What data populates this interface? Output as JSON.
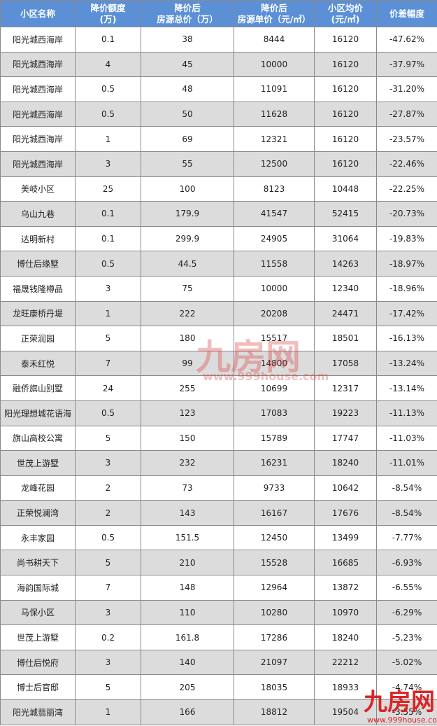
{
  "headers": [
    "小区名称",
    "降价额度\n(万)",
    "降价后\n房源总价（万）",
    "降价后\n房源单价（元/㎡）",
    "小区均价\n(元/㎡)",
    "价差幅度"
  ],
  "rows": [
    [
      "阳光城西海岸",
      "0.1",
      "38",
      "8444",
      "16120",
      "-47.62%"
    ],
    [
      "阳光城西海岸",
      "4",
      "45",
      "10000",
      "16120",
      "-37.97%"
    ],
    [
      "阳光城西海岸",
      "0.5",
      "48",
      "11091",
      "16120",
      "-31.20%"
    ],
    [
      "阳光城西海岸",
      "0.5",
      "50",
      "11628",
      "16120",
      "-27.87%"
    ],
    [
      "阳光城西海岸",
      "1",
      "69",
      "12321",
      "16120",
      "-23.57%"
    ],
    [
      "阳光城西海岸",
      "3",
      "55",
      "12500",
      "16120",
      "-22.46%"
    ],
    [
      "美岐小区",
      "25",
      "100",
      "8123",
      "10448",
      "-22.25%"
    ],
    [
      "乌山九巷",
      "0.1",
      "179.9",
      "41547",
      "52415",
      "-20.73%"
    ],
    [
      "达明新村",
      "0.1",
      "299.9",
      "24905",
      "31064",
      "-19.83%"
    ],
    [
      "博仕后缘墅",
      "0.5",
      "44.5",
      "11558",
      "14263",
      "-18.97%"
    ],
    [
      "福晟钱隆樽品",
      "3",
      "75",
      "10000",
      "12340",
      "-18.96%"
    ],
    [
      "龙旺康桥丹堤",
      "1",
      "222",
      "20208",
      "24471",
      "-17.42%"
    ],
    [
      "正荣润园",
      "5",
      "180",
      "15517",
      "18501",
      "-16.13%"
    ],
    [
      "泰禾红悦",
      "7",
      "99",
      "14800",
      "17058",
      "-13.24%"
    ],
    [
      "融侨旗山别墅",
      "24",
      "255",
      "10699",
      "12317",
      "-13.14%"
    ],
    [
      "阳光理想城花语海",
      "0.5",
      "123",
      "17083",
      "19223",
      "-11.13%"
    ],
    [
      "旗山高校公寓",
      "5",
      "150",
      "15789",
      "17747",
      "-11.03%"
    ],
    [
      "世茂上游墅",
      "3",
      "232",
      "16231",
      "18240",
      "-11.01%"
    ],
    [
      "龙峰花园",
      "2",
      "73",
      "9733",
      "10642",
      "-8.54%"
    ],
    [
      "正荣悦澜湾",
      "2",
      "143",
      "16167",
      "17676",
      "-8.54%"
    ],
    [
      "永丰家园",
      "0.5",
      "151.5",
      "12450",
      "13499",
      "-7.77%"
    ],
    [
      "尚书耕天下",
      "5",
      "210",
      "15528",
      "16685",
      "-6.93%"
    ],
    [
      "海韵国际城",
      "7",
      "148",
      "12964",
      "13872",
      "-6.55%"
    ],
    [
      "马保小区",
      "3",
      "110",
      "10280",
      "10970",
      "-6.29%"
    ],
    [
      "世茂上游墅",
      "0.2",
      "161.8",
      "17286",
      "18240",
      "-5.23%"
    ],
    [
      "博仕后悦府",
      "3",
      "140",
      "21097",
      "22212",
      "-5.02%"
    ],
    [
      "博士后官邸",
      "5",
      "205",
      "18035",
      "18933",
      "-4.74%"
    ],
    [
      "阳光城翡丽湾",
      "1",
      "166",
      "18812",
      "19504",
      "-3.55%"
    ]
  ],
  "watermark": {
    "logo": "九房网",
    "url": "www.999house.com"
  },
  "colors": {
    "header": "#5b8fd6",
    "alt_row": "#dcdcdc",
    "watermark": "#d92626"
  }
}
